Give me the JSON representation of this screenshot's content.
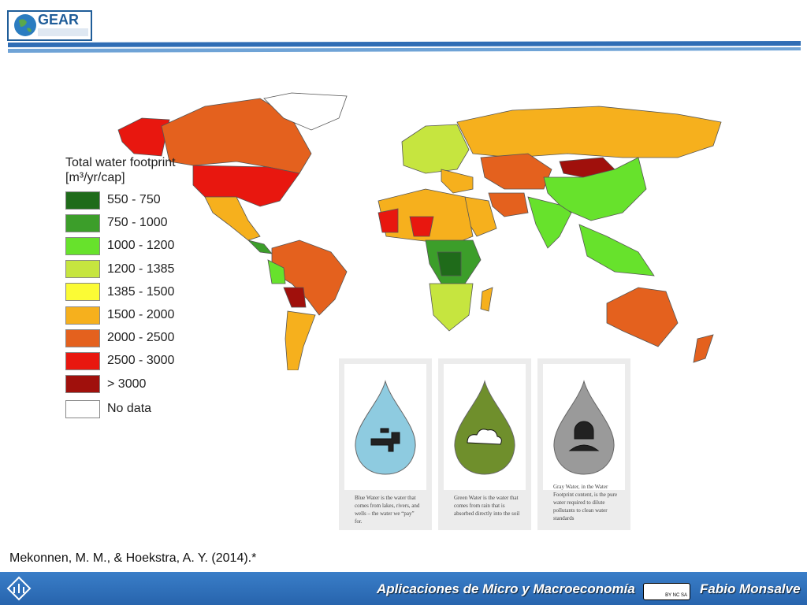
{
  "header": {
    "logo": "GEAR"
  },
  "map": {
    "legend": {
      "title": "Total water footprint",
      "unit": "[m³/yr/cap]",
      "items": [
        {
          "label": "550 - 750",
          "color": "#1f6b1a"
        },
        {
          "label": "750 - 1000",
          "color": "#3c9e2a"
        },
        {
          "label": "1000 - 1200",
          "color": "#67e22c"
        },
        {
          "label": "1200 - 1385",
          "color": "#c6e53f"
        },
        {
          "label": "1385 - 1500",
          "color": "#fbfb35"
        },
        {
          "label": "1500 - 2000",
          "color": "#f6b01d"
        },
        {
          "label": "2000 - 2500",
          "color": "#e4611e"
        },
        {
          "label": "2500 - 3000",
          "color": "#e8170f"
        },
        {
          "label": "> 3000",
          "color": "#a0100c"
        },
        {
          "label": "No data",
          "color": "#ffffff"
        }
      ]
    }
  },
  "water_types": [
    {
      "caption": "Blue Water is the water that comes from lakes, rivers, and wells – the water we “pay” for.",
      "color": "#8ecbe0"
    },
    {
      "caption": "Green Water is the water that comes from rain that is absorbed directly into the soil",
      "color": "#6f8f2c"
    },
    {
      "caption": "Gray Water, in the Water Footprint content, is the pure water required to dilute pollutants to clean water standards",
      "color": "#9a9a9a"
    }
  ],
  "citation": "Mekonnen, M. M., & Hoekstra, A. Y. (2014).*",
  "footer": {
    "course": "Aplicaciones de Micro y Macroeconomía",
    "license": "BY NC SA",
    "author": "Fabio Monsalve"
  }
}
